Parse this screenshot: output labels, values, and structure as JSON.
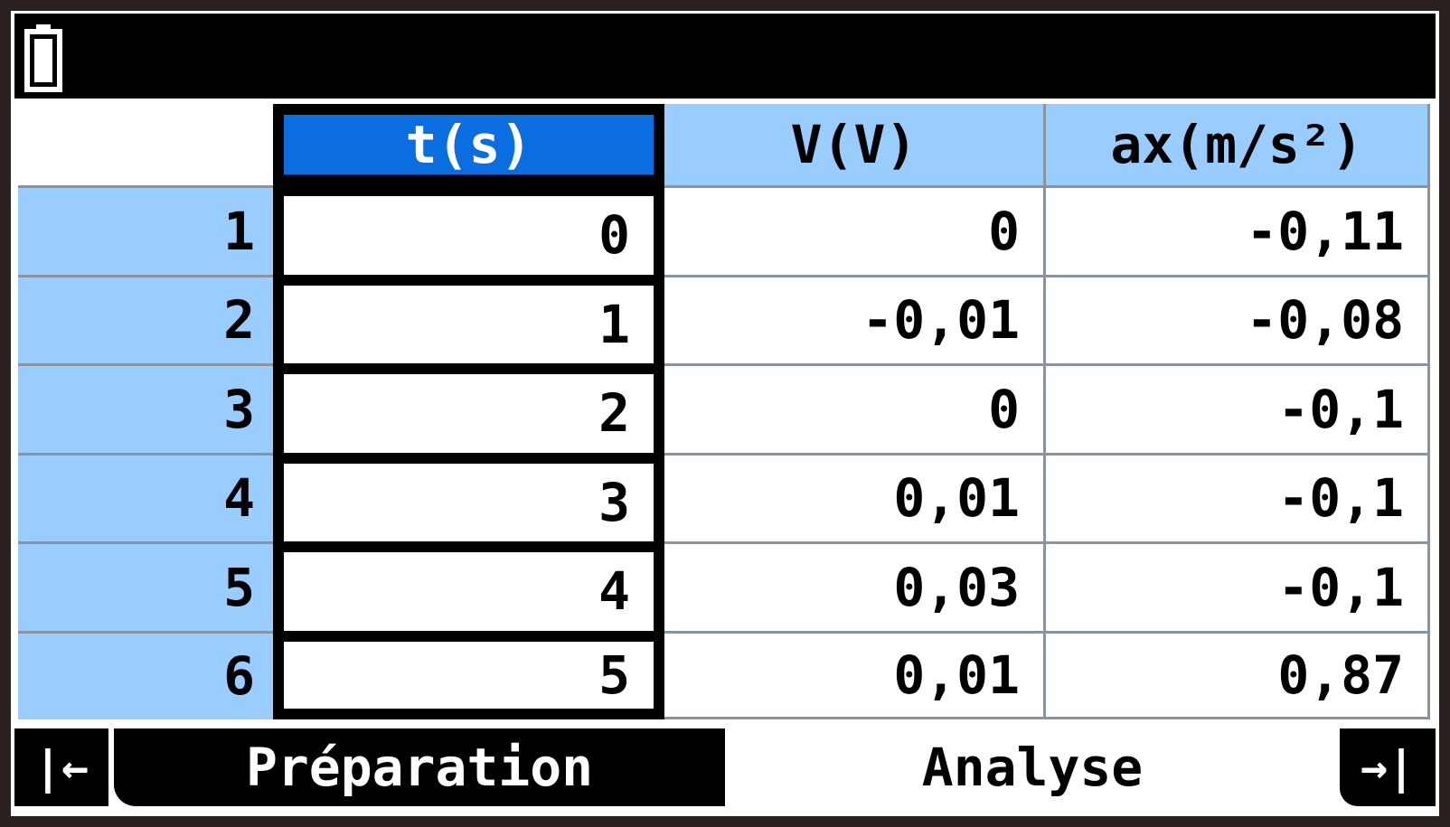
{
  "table": {
    "columns": [
      "t(s)",
      "V(V)",
      "ax(m/s²)"
    ],
    "rows": [
      {
        "index": "1",
        "cells": [
          "0",
          "0",
          "-0,11"
        ]
      },
      {
        "index": "2",
        "cells": [
          "1",
          "-0,01",
          "-0,08"
        ]
      },
      {
        "index": "3",
        "cells": [
          "2",
          "0",
          "-0,1"
        ]
      },
      {
        "index": "4",
        "cells": [
          "3",
          "0,01",
          "-0,1"
        ]
      },
      {
        "index": "5",
        "cells": [
          "4",
          "0,03",
          "-0,1"
        ]
      },
      {
        "index": "6",
        "cells": [
          "5",
          "0,01",
          "0,87"
        ]
      }
    ]
  },
  "tabs": [
    "Préparation",
    "Analyse"
  ]
}
